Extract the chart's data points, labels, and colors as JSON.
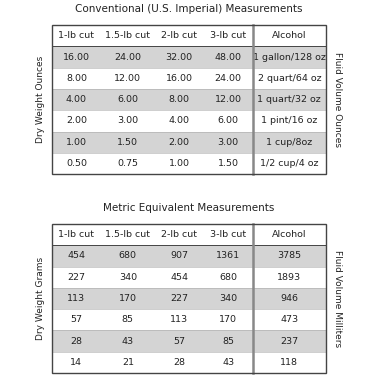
{
  "title1": "Conventional (U.S. Imperial) Measurements",
  "title2": "Metric Equivalent Measurements",
  "imperial_headers": [
    "1-lb cut",
    "1.5-lb cut",
    "2-lb cut",
    "3-lb cut",
    "Alcohol"
  ],
  "imperial_rows": [
    [
      "16.00",
      "24.00",
      "32.00",
      "48.00",
      "1 gallon/128 oz"
    ],
    [
      "8.00",
      "12.00",
      "16.00",
      "24.00",
      "2 quart/64 oz"
    ],
    [
      "4.00",
      "6.00",
      "8.00",
      "12.00",
      "1 quart/32 oz"
    ],
    [
      "2.00",
      "3.00",
      "4.00",
      "6.00",
      "1 pint/16 oz"
    ],
    [
      "1.00",
      "1.50",
      "2.00",
      "3.00",
      "1 cup/8oz"
    ],
    [
      "0.50",
      "0.75",
      "1.00",
      "1.50",
      "1/2 cup/4 oz"
    ]
  ],
  "metric_headers": [
    "1-lb cut",
    "1.5-lb cut",
    "2-lb cut",
    "3-lb cut",
    "Alcohol"
  ],
  "metric_rows": [
    [
      "454",
      "680",
      "907",
      "1361",
      "3785"
    ],
    [
      "227",
      "340",
      "454",
      "680",
      "1893"
    ],
    [
      "113",
      "170",
      "227",
      "340",
      "946"
    ],
    [
      "57",
      "85",
      "113",
      "170",
      "473"
    ],
    [
      "28",
      "43",
      "57",
      "85",
      "237"
    ],
    [
      "14",
      "21",
      "28",
      "43",
      "118"
    ]
  ],
  "ylabel1": "Dry Weight Ounces",
  "ylabel2": "Dry Weight Grams",
  "ylabel_right1": "Fluid Volume Ounces",
  "ylabel_right2": "Fluid Volume Milliters",
  "bg_color": "#ffffff",
  "header_bg": "#ffffff",
  "row_bg_odd": "#d4d4d4",
  "row_bg_even": "#ffffff",
  "separator_color": "#aaaaaa",
  "border_color": "#444444",
  "text_color": "#222222",
  "title_fontsize": 7.5,
  "header_fontsize": 6.8,
  "cell_fontsize": 6.8,
  "ylabel_fontsize": 6.5
}
